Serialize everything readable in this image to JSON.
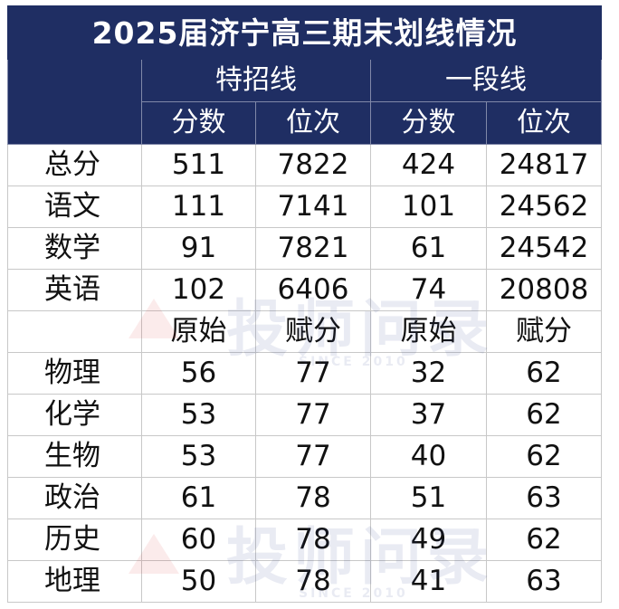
{
  "title": "2025届济宁高三期末划线情况",
  "bands": [
    "特招线",
    "一段线"
  ],
  "sub_headers_1": [
    "分数",
    "位次",
    "分数",
    "位次"
  ],
  "sub_headers_2": [
    "原始",
    "赋分",
    "原始",
    "赋分"
  ],
  "rows_top": [
    {
      "label": "总分",
      "values": [
        "511",
        "7822",
        "424",
        "24817"
      ]
    },
    {
      "label": "语文",
      "values": [
        "111",
        "7141",
        "101",
        "24562"
      ]
    },
    {
      "label": "数学",
      "values": [
        "91",
        "7821",
        "61",
        "24542"
      ]
    },
    {
      "label": "英语",
      "values": [
        "102",
        "6406",
        "74",
        "20808"
      ]
    }
  ],
  "rows_bottom": [
    {
      "label": "物理",
      "values": [
        "56",
        "77",
        "32",
        "62"
      ]
    },
    {
      "label": "化学",
      "values": [
        "53",
        "77",
        "37",
        "62"
      ]
    },
    {
      "label": "生物",
      "values": [
        "53",
        "77",
        "40",
        "62"
      ]
    },
    {
      "label": "政治",
      "values": [
        "61",
        "78",
        "51",
        "63"
      ]
    },
    {
      "label": "历史",
      "values": [
        "60",
        "78",
        "49",
        "62"
      ]
    },
    {
      "label": "地理",
      "values": [
        "50",
        "78",
        "41",
        "63"
      ]
    }
  ],
  "watermark": {
    "text": "投师问录",
    "sub": "SINCE 2010",
    "mark": "®"
  },
  "colors": {
    "header_bg": "#1f2e63",
    "header_text": "#ffffff",
    "body_text": "#111111",
    "grid": "#c8c8c8"
  }
}
